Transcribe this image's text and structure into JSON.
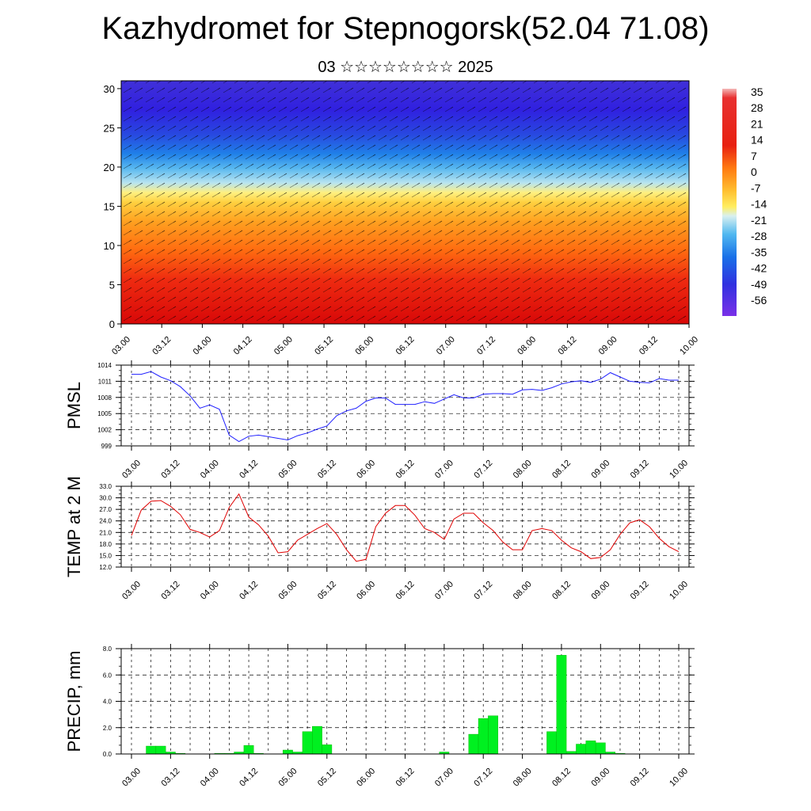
{
  "header": {
    "title": "Kazhydromet for Stepnogorsk(52.04 71.08)",
    "subtitle": "03 ☆☆☆☆☆☆☆☆ 2025"
  },
  "chart_data": [
    {
      "type": "heatmap",
      "title": "",
      "xlabel": "",
      "ylabel": "",
      "x_ticks": [
        "03.00",
        "03.12",
        "04.00",
        "04.12",
        "05.00",
        "05.12",
        "06.00",
        "06.12",
        "07.00",
        "07.12",
        "08.00",
        "08.12",
        "09.00",
        "09.12",
        "10.00"
      ],
      "y_ticks": [
        "0",
        "5",
        "10",
        "15",
        "20",
        "25",
        "30"
      ],
      "ylim": [
        0,
        31
      ],
      "colorbar_labels": [
        "35",
        "28",
        "21",
        "14",
        "7",
        "0",
        "-7",
        "-14",
        "-21",
        "-28",
        "-35",
        "-42",
        "-49",
        "-56"
      ],
      "colors": {
        "warm": "#e01010",
        "mid": "#ffe040",
        "cold": "#3030e0",
        "purple": "#8a2be2"
      },
      "wind_vectors": true
    },
    {
      "type": "line",
      "ylabel": "PMSL",
      "ylim": [
        999,
        1014
      ],
      "y_ticks": [
        "1014",
        "1011",
        "1008",
        "1005",
        "1002",
        "999"
      ],
      "x_ticks": [
        "03.00",
        "03.12",
        "04.00",
        "04.12",
        "05.00",
        "05.12",
        "06.00",
        "06.12",
        "07.00",
        "07.12",
        "08.00",
        "08.12",
        "09.00",
        "09.12",
        "10.00"
      ],
      "color": "#2020ff",
      "values": [
        1012.3,
        1012.3,
        1012.8,
        1011.8,
        1011.1,
        1010.0,
        1008.3,
        1006.0,
        1006.6,
        1005.8,
        1001.0,
        999.8,
        1000.8,
        1001.0,
        1000.7,
        1000.4,
        1000.1,
        1000.9,
        1001.4,
        1002.1,
        1002.7,
        1004.6,
        1005.5,
        1006.0,
        1007.3,
        1007.9,
        1007.9,
        1006.7,
        1006.7,
        1006.7,
        1007.2,
        1006.9,
        1007.7,
        1008.5,
        1007.9,
        1007.9,
        1008.6,
        1008.7,
        1008.7,
        1008.6,
        1009.4,
        1009.5,
        1009.3,
        1009.8,
        1010.5,
        1010.9,
        1011.1,
        1010.8,
        1011.4,
        1012.6,
        1011.8,
        1011.0,
        1010.8,
        1010.7,
        1011.5,
        1011.2,
        1011.2
      ],
      "grid": true
    },
    {
      "type": "line",
      "ylabel": "TEMP at 2 M",
      "ylim": [
        12,
        33
      ],
      "y_ticks": [
        "33.0",
        "30.0",
        "27.0",
        "24.0",
        "21.0",
        "18.0",
        "15.0",
        "12.0"
      ],
      "x_ticks": [
        "03.00",
        "03.12",
        "04.00",
        "04.12",
        "05.00",
        "05.12",
        "06.00",
        "06.12",
        "07.00",
        "07.12",
        "08.00",
        "08.12",
        "09.00",
        "09.12",
        "10.00"
      ],
      "color": "#e00000",
      "values": [
        20.2,
        26.8,
        29.1,
        29.3,
        27.8,
        25.6,
        21.8,
        21.0,
        19.8,
        21.5,
        27.5,
        31.0,
        25.0,
        23.0,
        20.0,
        15.7,
        16.0,
        19.0,
        20.5,
        22.0,
        23.3,
        20.5,
        16.5,
        13.5,
        14.0,
        22.5,
        26.0,
        28.0,
        28.0,
        25.5,
        22.0,
        21.0,
        19.2,
        24.5,
        26.0,
        26.0,
        23.5,
        21.5,
        18.5,
        16.5,
        16.5,
        21.5,
        22.0,
        21.5,
        19.0,
        17.0,
        16.0,
        14.2,
        14.5,
        16.5,
        20.5,
        23.5,
        24.3,
        22.5,
        19.5,
        17.3,
        16.0
      ],
      "grid": true
    },
    {
      "type": "bar",
      "ylabel": "PRECIP, mm",
      "ylim": [
        0,
        8
      ],
      "y_ticks": [
        "8.0",
        "6.0",
        "4.0",
        "2.0",
        "0.0"
      ],
      "x_ticks": [
        "03.00",
        "03.12",
        "04.00",
        "04.12",
        "05.00",
        "05.12",
        "06.00",
        "06.12",
        "07.00",
        "07.12",
        "08.00",
        "08.12",
        "09.00",
        "09.12",
        "10.00"
      ],
      "color": "#00f020",
      "values": [
        0,
        0,
        0.6,
        0.6,
        0.15,
        0.05,
        0,
        0,
        0,
        0.05,
        0.05,
        0.15,
        0.65,
        0.05,
        0,
        0,
        0.3,
        0.15,
        1.7,
        2.1,
        0.7,
        0,
        0,
        0,
        0,
        0,
        0,
        0,
        0,
        0,
        0,
        0,
        0.15,
        0,
        0,
        1.5,
        2.7,
        2.9,
        0,
        0,
        0,
        0,
        0,
        1.7,
        7.5,
        0.2,
        0.75,
        1.0,
        0.85,
        0.15,
        0.05,
        0,
        0,
        0,
        0,
        0,
        0
      ],
      "grid": true
    }
  ]
}
